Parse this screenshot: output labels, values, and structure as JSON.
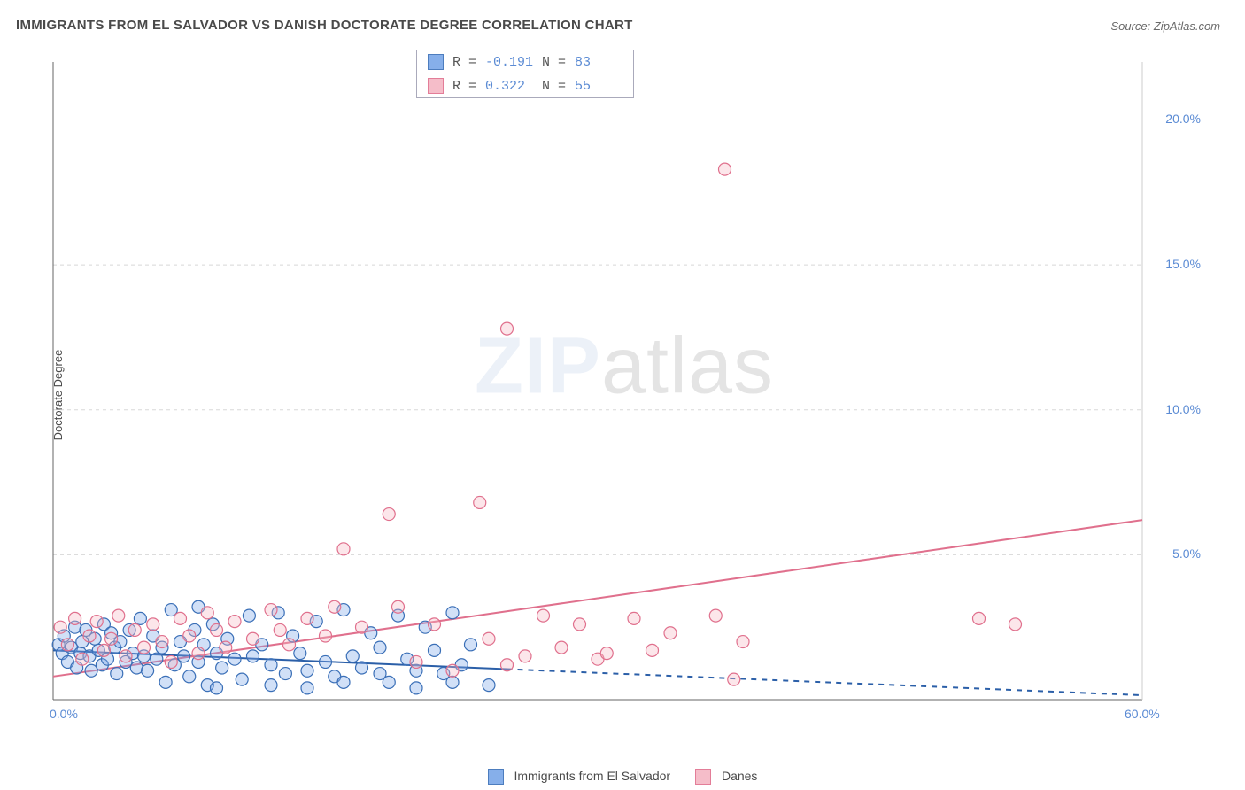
{
  "title": "IMMIGRANTS FROM EL SALVADOR VS DANISH DOCTORATE DEGREE CORRELATION CHART",
  "source": "Source: ZipAtlas.com",
  "ylabel": "Doctorate Degree",
  "watermark_bold": "ZIP",
  "watermark_light": "atlas",
  "chart": {
    "type": "scatter",
    "x_domain": [
      0,
      60
    ],
    "y_domain": [
      0,
      22
    ],
    "y_ticks": [
      5.0,
      10.0,
      15.0,
      20.0
    ],
    "y_tick_labels": [
      "5.0%",
      "10.0%",
      "15.0%",
      "20.0%"
    ],
    "x_tick_min": "0.0%",
    "x_tick_max": "60.0%",
    "grid_color": "#d8d8d8",
    "axis_color": "#666666",
    "background_color": "#ffffff",
    "marker_radius": 7,
    "marker_stroke_width": 1.2,
    "marker_fill_opacity": 0.35,
    "series": [
      {
        "key": "el_salvador",
        "label": "Immigrants from El Salvador",
        "fill_color": "#7aa7e8",
        "stroke_color": "#3a6fb7",
        "r_value": "-0.191",
        "n_value": "83",
        "trend": {
          "x1": 0,
          "y1": 1.7,
          "x2": 60,
          "y2": 0.15,
          "solid_until_x": 25,
          "color": "#2b5fa8",
          "width": 2
        },
        "points": [
          [
            0.3,
            1.9
          ],
          [
            0.5,
            1.6
          ],
          [
            0.6,
            2.2
          ],
          [
            0.8,
            1.3
          ],
          [
            1.0,
            1.8
          ],
          [
            1.2,
            2.5
          ],
          [
            1.3,
            1.1
          ],
          [
            1.5,
            1.6
          ],
          [
            1.6,
            2.0
          ],
          [
            1.8,
            2.4
          ],
          [
            2.0,
            1.5
          ],
          [
            2.1,
            1.0
          ],
          [
            2.3,
            2.1
          ],
          [
            2.5,
            1.7
          ],
          [
            2.7,
            1.2
          ],
          [
            2.8,
            2.6
          ],
          [
            3.0,
            1.4
          ],
          [
            3.2,
            2.3
          ],
          [
            3.4,
            1.8
          ],
          [
            3.5,
            0.9
          ],
          [
            3.7,
            2.0
          ],
          [
            4.0,
            1.3
          ],
          [
            4.2,
            2.4
          ],
          [
            4.4,
            1.6
          ],
          [
            4.6,
            1.1
          ],
          [
            4.8,
            2.8
          ],
          [
            5.0,
            1.5
          ],
          [
            5.2,
            1.0
          ],
          [
            5.5,
            2.2
          ],
          [
            5.7,
            1.4
          ],
          [
            6.0,
            1.8
          ],
          [
            6.2,
            0.6
          ],
          [
            6.5,
            3.1
          ],
          [
            6.7,
            1.2
          ],
          [
            7.0,
            2.0
          ],
          [
            7.2,
            1.5
          ],
          [
            7.5,
            0.8
          ],
          [
            7.8,
            2.4
          ],
          [
            8.0,
            1.3
          ],
          [
            8.3,
            1.9
          ],
          [
            8.5,
            0.5
          ],
          [
            8.8,
            2.6
          ],
          [
            9.0,
            1.6
          ],
          [
            9.3,
            1.1
          ],
          [
            9.6,
            2.1
          ],
          [
            10.0,
            1.4
          ],
          [
            10.4,
            0.7
          ],
          [
            10.8,
            2.9
          ],
          [
            11.0,
            1.5
          ],
          [
            11.5,
            1.9
          ],
          [
            12.0,
            1.2
          ],
          [
            12.4,
            3.0
          ],
          [
            12.8,
            0.9
          ],
          [
            13.2,
            2.2
          ],
          [
            13.6,
            1.6
          ],
          [
            14.0,
            1.0
          ],
          [
            14.5,
            2.7
          ],
          [
            15.0,
            1.3
          ],
          [
            15.5,
            0.8
          ],
          [
            16.0,
            3.1
          ],
          [
            16.5,
            1.5
          ],
          [
            17.0,
            1.1
          ],
          [
            17.5,
            2.3
          ],
          [
            18.0,
            1.8
          ],
          [
            18.5,
            0.6
          ],
          [
            19.0,
            2.9
          ],
          [
            19.5,
            1.4
          ],
          [
            20.0,
            1.0
          ],
          [
            20.5,
            2.5
          ],
          [
            21.0,
            1.7
          ],
          [
            21.5,
            0.9
          ],
          [
            22.0,
            3.0
          ],
          [
            22.5,
            1.2
          ],
          [
            23.0,
            1.9
          ],
          [
            24.0,
            0.5
          ],
          [
            8.0,
            3.2
          ],
          [
            9.0,
            0.4
          ],
          [
            12.0,
            0.5
          ],
          [
            14.0,
            0.4
          ],
          [
            16.0,
            0.6
          ],
          [
            18.0,
            0.9
          ],
          [
            20.0,
            0.4
          ],
          [
            22.0,
            0.6
          ]
        ]
      },
      {
        "key": "danes",
        "label": "Danes",
        "fill_color": "#f5b6c4",
        "stroke_color": "#e0708d",
        "r_value": "0.322",
        "n_value": "55",
        "trend": {
          "x1": 0,
          "y1": 0.8,
          "x2": 60,
          "y2": 6.2,
          "solid_until_x": 60,
          "color": "#e0708d",
          "width": 2
        },
        "points": [
          [
            0.4,
            2.5
          ],
          [
            0.8,
            1.9
          ],
          [
            1.2,
            2.8
          ],
          [
            1.6,
            1.4
          ],
          [
            2.0,
            2.2
          ],
          [
            2.4,
            2.7
          ],
          [
            2.8,
            1.7
          ],
          [
            3.2,
            2.1
          ],
          [
            3.6,
            2.9
          ],
          [
            4.0,
            1.5
          ],
          [
            4.5,
            2.4
          ],
          [
            5.0,
            1.8
          ],
          [
            5.5,
            2.6
          ],
          [
            6.0,
            2.0
          ],
          [
            6.5,
            1.3
          ],
          [
            7.0,
            2.8
          ],
          [
            7.5,
            2.2
          ],
          [
            8.0,
            1.6
          ],
          [
            8.5,
            3.0
          ],
          [
            9.0,
            2.4
          ],
          [
            9.5,
            1.8
          ],
          [
            10.0,
            2.7
          ],
          [
            11.0,
            2.1
          ],
          [
            12.0,
            3.1
          ],
          [
            12.5,
            2.4
          ],
          [
            13.0,
            1.9
          ],
          [
            14.0,
            2.8
          ],
          [
            15.0,
            2.2
          ],
          [
            15.5,
            3.2
          ],
          [
            16.0,
            5.2
          ],
          [
            17.0,
            2.5
          ],
          [
            18.5,
            6.4
          ],
          [
            19.0,
            3.2
          ],
          [
            20.0,
            1.3
          ],
          [
            21.0,
            2.6
          ],
          [
            22.0,
            1.0
          ],
          [
            23.5,
            6.8
          ],
          [
            24.0,
            2.1
          ],
          [
            25.0,
            12.8
          ],
          [
            26.0,
            1.5
          ],
          [
            27.0,
            2.9
          ],
          [
            28.0,
            1.8
          ],
          [
            29.0,
            2.6
          ],
          [
            30.0,
            1.4
          ],
          [
            32.0,
            2.8
          ],
          [
            33.0,
            1.7
          ],
          [
            34.0,
            2.3
          ],
          [
            36.5,
            2.9
          ],
          [
            37.0,
            18.3
          ],
          [
            37.5,
            0.7
          ],
          [
            38.0,
            2.0
          ],
          [
            51.0,
            2.8
          ],
          [
            53.0,
            2.6
          ],
          [
            25.0,
            1.2
          ],
          [
            30.5,
            1.6
          ]
        ]
      }
    ]
  },
  "stats_box": {
    "r_label": "R =",
    "n_label": "N ="
  },
  "bottom_legend": {
    "series1_label": "Immigrants from El Salvador",
    "series2_label": "Danes"
  }
}
